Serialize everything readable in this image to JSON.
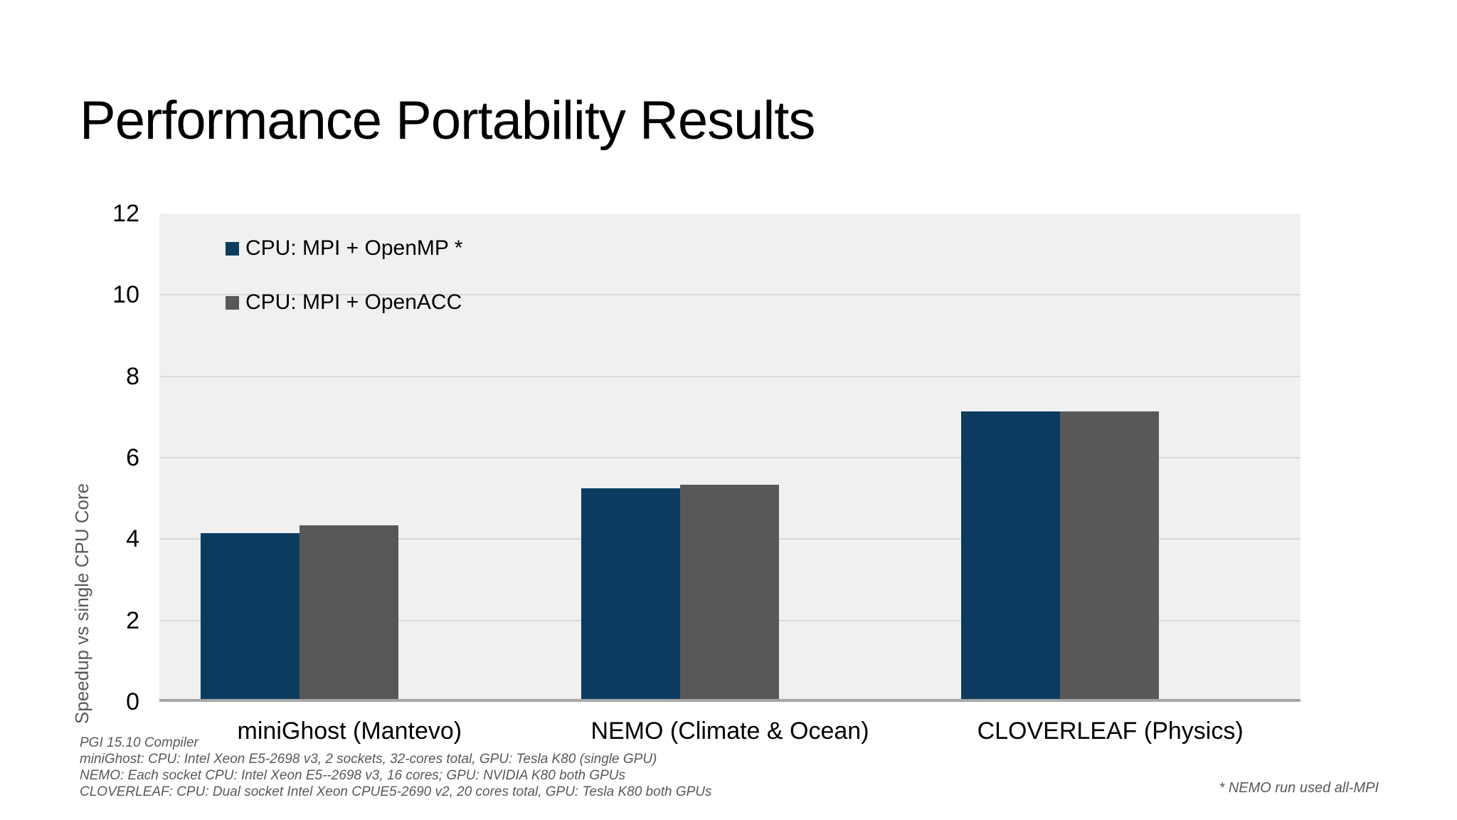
{
  "slide": {
    "title": "Performance Portability Results"
  },
  "chart_data": {
    "type": "bar",
    "title": "",
    "categories": [
      "miniGhost (Mantevo)",
      "NEMO (Climate & Ocean)",
      "CLOVERLEAF (Physics)"
    ],
    "series": [
      {
        "name": "CPU: MPI + OpenMP *",
        "color": "#0b3c60",
        "values": [
          4.1,
          5.2,
          7.1
        ]
      },
      {
        "name": "CPU: MPI + OpenACC",
        "color": "#585858",
        "values": [
          4.3,
          5.3,
          7.1
        ]
      }
    ],
    "xlabel": "",
    "ylabel": "Speedup vs single CPU Core",
    "ylim": [
      0,
      12
    ],
    "yticks": [
      12,
      10,
      8,
      6,
      4,
      2,
      0
    ],
    "grid": true,
    "legend_position": "inside-top-left",
    "plot_bg_color": "#f0f0f1",
    "gridline_color": "#d9d9d9",
    "axis_line_color": "#a6a6a6"
  },
  "footnotes": {
    "left_lines": [
      "PGI 15.10 Compiler",
      "miniGhost: CPU: Intel Xeon E5-2698 v3, 2 sockets, 32-cores total, GPU: Tesla K80 (single GPU)",
      "NEMO: Each socket CPU: Intel Xeon E5--2698 v3, 16 cores; GPU: NVIDIA K80 both GPUs",
      "CLOVERLEAF: CPU: Dual socket Intel Xeon CPUE5-2690 v2, 20 cores total, GPU: Tesla K80 both GPUs"
    ],
    "right": "* NEMO run used all-MPI"
  }
}
